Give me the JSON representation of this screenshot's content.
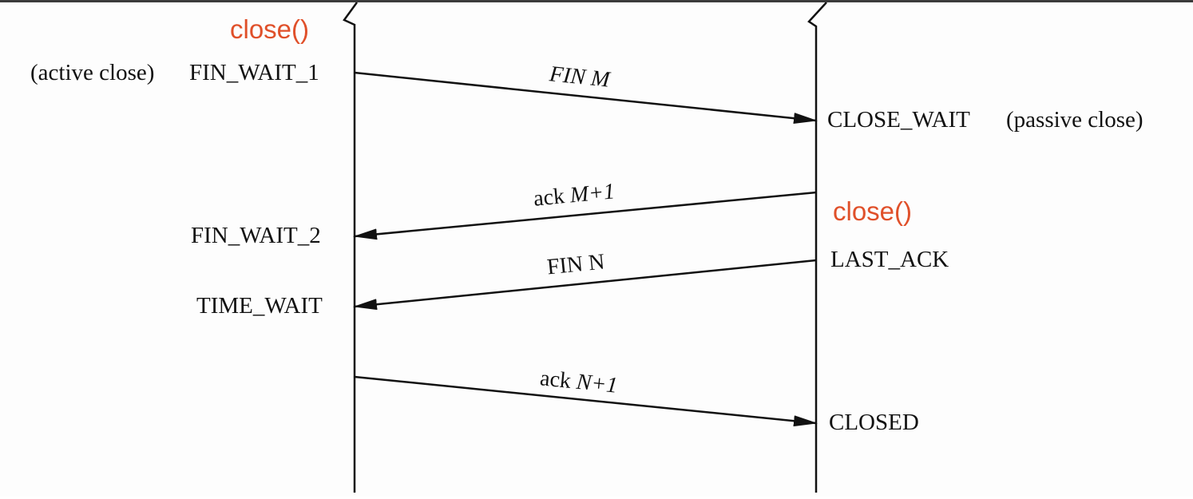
{
  "client": {
    "call": "close()",
    "role": "(active close)",
    "states": [
      "FIN_WAIT_1",
      "FIN_WAIT_2",
      "TIME_WAIT"
    ]
  },
  "server": {
    "call": "close()",
    "role": "(passive close)",
    "states": [
      "CLOSE_WAIT",
      "LAST_ACK",
      "CLOSED"
    ]
  },
  "messages": [
    {
      "label": "FIN",
      "var": "M",
      "direction": "client-to-server"
    },
    {
      "label": "ack",
      "var": "M+1",
      "direction": "server-to-client"
    },
    {
      "label": "FIN",
      "var": "N",
      "direction": "server-to-client"
    },
    {
      "label": "ack",
      "var": "N+1",
      "direction": "client-to-server"
    }
  ],
  "colors": {
    "call": "#e0502a",
    "line": "#111111"
  }
}
